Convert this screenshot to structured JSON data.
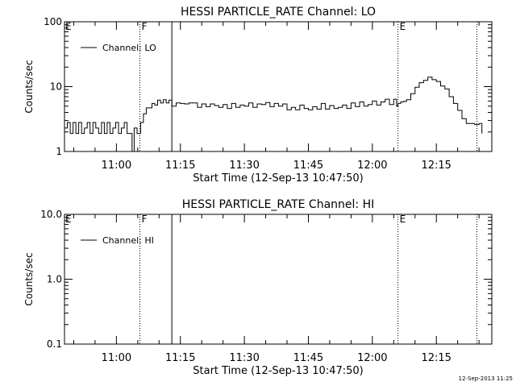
{
  "footer_timestamp": "12-Sep-2013 11:25",
  "chart_data": [
    {
      "type": "line",
      "title": "HESSI PARTICLE_RATE Channel: LO",
      "xlabel": "Start Time (12-Sep-13 10:47:50)",
      "ylabel": "Counts/sec",
      "y_scale": "log",
      "ylim": [
        1,
        100
      ],
      "yticks": [
        1,
        10,
        100
      ],
      "ytick_labels": [
        "1",
        "10",
        "100"
      ],
      "xlim": [
        "10:47:50",
        "12:28:00"
      ],
      "xticks": [
        "11:00",
        "11:15",
        "11:30",
        "11:45",
        "12:00",
        "12:15"
      ],
      "legend": {
        "label": "Channel: LO",
        "position": "top-left"
      },
      "markers": [
        {
          "time": "11:05:30",
          "style": "dotted",
          "label": "F"
        },
        {
          "time": "11:13:00",
          "style": "solid",
          "label": ""
        },
        {
          "time": "12:06:00",
          "style": "dotted",
          "label": "E"
        },
        {
          "time": "12:24:30",
          "style": "dotted",
          "label": ""
        }
      ],
      "corner_label": "E",
      "series": [
        {
          "name": "Channel: LO",
          "points": [
            [
              "10:47:50",
              2.3
            ],
            [
              "10:48:30",
              2.8
            ],
            [
              "10:49:10",
              1.9
            ],
            [
              "10:49:50",
              2.8
            ],
            [
              "10:50:30",
              1.9
            ],
            [
              "10:51:10",
              2.8
            ],
            [
              "10:51:50",
              1.9
            ],
            [
              "10:52:30",
              2.3
            ],
            [
              "10:53:10",
              2.8
            ],
            [
              "10:53:50",
              1.9
            ],
            [
              "10:54:30",
              2.8
            ],
            [
              "10:55:10",
              2.3
            ],
            [
              "10:55:50",
              1.9
            ],
            [
              "10:56:30",
              2.8
            ],
            [
              "10:57:10",
              1.9
            ],
            [
              "10:57:50",
              2.8
            ],
            [
              "10:58:30",
              1.9
            ],
            [
              "10:59:10",
              2.3
            ],
            [
              "10:59:50",
              2.8
            ],
            [
              "11:00:30",
              1.9
            ],
            [
              "11:01:10",
              2.3
            ],
            [
              "11:01:50",
              2.8
            ],
            [
              "11:02:30",
              1.9
            ],
            [
              "11:03:10",
              1.9
            ],
            [
              "11:03:40",
              1.0
            ],
            [
              "11:04:10",
              2.3
            ],
            [
              "11:04:50",
              1.9
            ],
            [
              "11:05:40",
              2.8
            ],
            [
              "11:06:20",
              3.8
            ],
            [
              "11:07:00",
              4.7
            ],
            [
              "11:07:40",
              4.7
            ],
            [
              "11:08:20",
              5.5
            ],
            [
              "11:09:00",
              5.2
            ],
            [
              "11:09:40",
              6.2
            ],
            [
              "11:10:20",
              5.6
            ],
            [
              "11:11:00",
              6.3
            ],
            [
              "11:11:40",
              5.6
            ],
            [
              "11:12:20",
              6.2
            ],
            [
              "11:13:00",
              5.0
            ],
            [
              "11:14:00",
              5.6
            ],
            [
              "11:15:00",
              5.5
            ],
            [
              "11:16:00",
              5.4
            ],
            [
              "11:17:00",
              5.6
            ],
            [
              "11:18:00",
              5.6
            ],
            [
              "11:19:00",
              4.8
            ],
            [
              "11:20:00",
              5.4
            ],
            [
              "11:21:00",
              4.9
            ],
            [
              "11:22:00",
              5.4
            ],
            [
              "11:23:00",
              5.1
            ],
            [
              "11:24:00",
              4.8
            ],
            [
              "11:25:00",
              5.3
            ],
            [
              "11:26:00",
              4.6
            ],
            [
              "11:27:00",
              5.5
            ],
            [
              "11:28:00",
              4.8
            ],
            [
              "11:29:00",
              5.2
            ],
            [
              "11:30:00",
              5.0
            ],
            [
              "11:31:00",
              5.6
            ],
            [
              "11:32:00",
              4.8
            ],
            [
              "11:33:00",
              5.4
            ],
            [
              "11:34:00",
              5.3
            ],
            [
              "11:35:00",
              5.7
            ],
            [
              "11:36:00",
              4.9
            ],
            [
              "11:37:00",
              5.5
            ],
            [
              "11:38:00",
              5.0
            ],
            [
              "11:39:00",
              5.4
            ],
            [
              "11:40:00",
              4.4
            ],
            [
              "11:41:00",
              4.8
            ],
            [
              "11:42:00",
              4.4
            ],
            [
              "11:43:00",
              5.2
            ],
            [
              "11:44:00",
              4.6
            ],
            [
              "11:45:00",
              4.4
            ],
            [
              "11:46:00",
              4.9
            ],
            [
              "11:47:00",
              4.5
            ],
            [
              "11:48:00",
              5.5
            ],
            [
              "11:49:00",
              4.5
            ],
            [
              "11:50:00",
              5.1
            ],
            [
              "11:51:00",
              4.6
            ],
            [
              "11:52:00",
              4.8
            ],
            [
              "11:53:00",
              5.2
            ],
            [
              "11:54:00",
              4.6
            ],
            [
              "11:55:00",
              5.6
            ],
            [
              "11:56:00",
              4.9
            ],
            [
              "11:57:00",
              5.8
            ],
            [
              "11:58:00",
              5.0
            ],
            [
              "11:59:00",
              5.3
            ],
            [
              "12:00:00",
              6.0
            ],
            [
              "12:01:00",
              5.2
            ],
            [
              "12:02:00",
              5.8
            ],
            [
              "12:03:00",
              6.4
            ],
            [
              "12:04:00",
              5.3
            ],
            [
              "12:05:00",
              6.4
            ],
            [
              "12:05:40",
              5.0
            ],
            [
              "12:06:00",
              5.5
            ],
            [
              "12:06:40",
              5.8
            ],
            [
              "12:07:20",
              5.9
            ],
            [
              "12:08:00",
              6.3
            ],
            [
              "12:09:00",
              7.8
            ],
            [
              "12:10:00",
              9.8
            ],
            [
              "12:11:00",
              11.5
            ],
            [
              "12:12:00",
              12.5
            ],
            [
              "12:13:00",
              14.0
            ],
            [
              "12:14:00",
              12.8
            ],
            [
              "12:15:00",
              12.0
            ],
            [
              "12:16:00",
              10.2
            ],
            [
              "12:17:00",
              9.2
            ],
            [
              "12:18:00",
              7.0
            ],
            [
              "12:19:00",
              5.5
            ],
            [
              "12:20:00",
              4.3
            ],
            [
              "12:21:00",
              3.2
            ],
            [
              "12:22:00",
              2.7
            ],
            [
              "12:23:00",
              2.7
            ],
            [
              "12:24:00",
              2.6
            ],
            [
              "12:25:00",
              2.7
            ],
            [
              "12:25:40",
              1.9
            ]
          ]
        }
      ]
    },
    {
      "type": "line",
      "title": "HESSI PARTICLE_RATE Channel: HI",
      "xlabel": "Start Time (12-Sep-13 10:47:50)",
      "ylabel": "Counts/sec",
      "y_scale": "log",
      "ylim": [
        0.1,
        10
      ],
      "yticks": [
        0.1,
        1,
        10
      ],
      "ytick_labels": [
        "0.1",
        "1.0",
        "10.0"
      ],
      "xlim": [
        "10:47:50",
        "12:28:00"
      ],
      "xticks": [
        "11:00",
        "11:15",
        "11:30",
        "11:45",
        "12:00",
        "12:15"
      ],
      "legend": {
        "label": "Channel: HI",
        "position": "top-left"
      },
      "markers": [
        {
          "time": "11:05:30",
          "style": "dotted",
          "label": "F"
        },
        {
          "time": "11:13:00",
          "style": "solid",
          "label": ""
        },
        {
          "time": "12:06:00",
          "style": "dotted",
          "label": "E"
        },
        {
          "time": "12:24:30",
          "style": "dotted",
          "label": ""
        }
      ],
      "corner_label": "E",
      "series": [
        {
          "name": "Channel: HI",
          "points": []
        }
      ]
    }
  ]
}
